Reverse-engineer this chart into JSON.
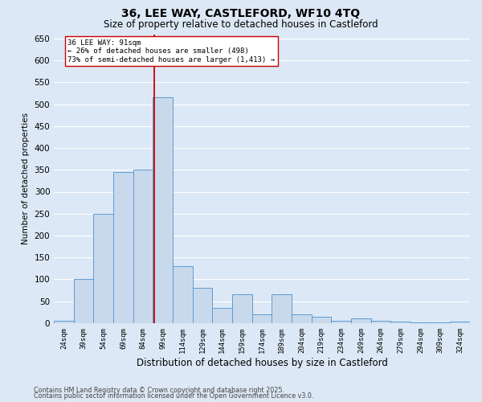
{
  "title_line1": "36, LEE WAY, CASTLEFORD, WF10 4TQ",
  "title_line2": "Size of property relative to detached houses in Castleford",
  "xlabel": "Distribution of detached houses by size in Castleford",
  "ylabel": "Number of detached properties",
  "annotation_line1": "36 LEE WAY: 91sqm",
  "annotation_line2": "← 26% of detached houses are smaller (498)",
  "annotation_line3": "73% of semi-detached houses are larger (1,413) →",
  "footer_line1": "Contains HM Land Registry data © Crown copyright and database right 2025.",
  "footer_line2": "Contains public sector information licensed under the Open Government Licence v3.0.",
  "bar_categories": [
    "24sqm",
    "39sqm",
    "54sqm",
    "69sqm",
    "84sqm",
    "99sqm",
    "114sqm",
    "129sqm",
    "144sqm",
    "159sqm",
    "174sqm",
    "189sqm",
    "204sqm",
    "219sqm",
    "234sqm",
    "249sqm",
    "264sqm",
    "279sqm",
    "294sqm",
    "309sqm",
    "324sqm"
  ],
  "bar_values": [
    5,
    100,
    250,
    345,
    350,
    515,
    130,
    80,
    35,
    65,
    20,
    65,
    20,
    15,
    5,
    10,
    5,
    3,
    2,
    1,
    3
  ],
  "bar_color": "#c9d9ec",
  "bar_edge_color": "#5b9bd5",
  "background_color": "#dce8f5",
  "grid_color": "#ffffff",
  "vline_color": "#cc0000",
  "vline_x": 4.55,
  "ylim": [
    0,
    660
  ],
  "yticks": [
    0,
    50,
    100,
    150,
    200,
    250,
    300,
    350,
    400,
    450,
    500,
    550,
    600,
    650
  ]
}
